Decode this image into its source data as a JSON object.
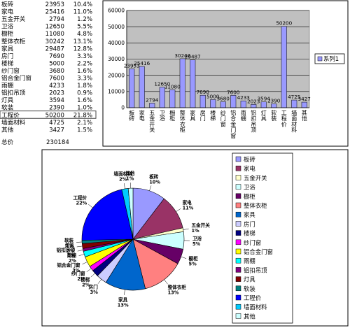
{
  "table": {
    "rows": [
      {
        "name": "板砖",
        "value": "23953",
        "pct": "10.4%"
      },
      {
        "name": "家电",
        "value": "25416",
        "pct": "11.0%"
      },
      {
        "name": "五金开关",
        "value": "2794",
        "pct": "1.2%"
      },
      {
        "name": "卫浴",
        "value": "12650",
        "pct": "5.5%"
      },
      {
        "name": "橱柜",
        "value": "11080",
        "pct": "4.8%"
      },
      {
        "name": "整体衣柜",
        "value": "30242",
        "pct": "13.1%"
      },
      {
        "name": "家具",
        "value": "29487",
        "pct": "12.8%"
      },
      {
        "name": "房门",
        "value": "7690",
        "pct": "3.3%"
      },
      {
        "name": "楼梯",
        "value": "5000",
        "pct": "2.2%"
      },
      {
        "name": "纱门窗",
        "value": "3680",
        "pct": "1.6%"
      },
      {
        "name": "铝合金门窗",
        "value": "7600",
        "pct": "3.3%"
      },
      {
        "name": "雨棚",
        "value": "4233",
        "pct": "1.8%"
      },
      {
        "name": "铝扣吊顶",
        "value": "2023",
        "pct": "0.9%"
      },
      {
        "name": "灯具",
        "value": "3594",
        "pct": "1.6%"
      },
      {
        "name": "软装",
        "value": "2390",
        "pct": "1.0%"
      },
      {
        "name": "工程价",
        "value": "50200",
        "pct": "21.8%"
      },
      {
        "name": "墙面材料",
        "value": "4725",
        "pct": "2.1%"
      },
      {
        "name": "其他",
        "value": "3427",
        "pct": "1.5%"
      }
    ],
    "total_label": "总价",
    "total_value": "230184",
    "highlight_index": 15
  },
  "chart_data": [
    {
      "type": "bar",
      "categories": [
        "板砖",
        "家电",
        "五金开关",
        "卫浴",
        "橱柜",
        "整体衣柜",
        "家具",
        "房门",
        "楼梯",
        "纱门窗",
        "铝合金门窗",
        "雨棚",
        "铝扣吊顶",
        "灯具",
        "软装",
        "工程价",
        "墙面材料",
        "其他"
      ],
      "series": [
        {
          "name": "系列1",
          "values": [
            23953,
            25416,
            2794,
            12650,
            11080,
            30242,
            29487,
            7690,
            5000,
            3680,
            7600,
            4233,
            2023,
            3594,
            2390,
            50200,
            4725,
            3427
          ]
        }
      ],
      "data_labels": [
        "23953",
        "25416",
        "2794",
        "12650",
        "11080",
        "30242",
        "29487",
        "7690",
        "5000",
        "3680",
        "7600",
        "4233",
        "2023",
        "3594",
        "2390",
        "50200",
        "4725",
        "3427"
      ],
      "ylim": [
        0,
        60000
      ],
      "yticks": [
        "0",
        "10000",
        "20000",
        "30000",
        "40000",
        "50000",
        "60000"
      ],
      "grid": true,
      "legend_placement": "right",
      "bar_color": "#9999ff",
      "plot_bg": "#c0c0c0"
    },
    {
      "type": "pie",
      "categories": [
        "板砖",
        "家电",
        "五金开关",
        "卫浴",
        "橱柜",
        "整体衣柜",
        "家具",
        "房门",
        "楼梯",
        "纱门窗",
        "铝合金门窗",
        "雨棚",
        "铝扣吊顶",
        "灯具",
        "软装",
        "工程价",
        "墙面材料",
        "其他"
      ],
      "values": [
        23953,
        25416,
        2794,
        12650,
        11080,
        30242,
        29487,
        7690,
        5000,
        3680,
        7600,
        4233,
        2023,
        3594,
        2390,
        50200,
        4725,
        3427
      ],
      "labels": [
        {
          "name": "板砖",
          "pct": "10%"
        },
        {
          "name": "家电",
          "pct": "11%"
        },
        {
          "name": "五金开关",
          "pct": "1%"
        },
        {
          "name": "卫浴",
          "pct": "5%"
        },
        {
          "name": "橱柜",
          "pct": "5%"
        },
        {
          "name": "整体衣柜",
          "pct": "13%"
        },
        {
          "name": "家具",
          "pct": "13%"
        },
        {
          "name": "房门",
          "pct": "3%"
        },
        {
          "name": "楼梯",
          "pct": "2%"
        },
        {
          "name": "纱门窗",
          "pct": "2%"
        },
        {
          "name": "铝合金门窗",
          "pct": "3%"
        },
        {
          "name": "雨棚",
          "pct": "2%"
        },
        {
          "name": "铝扣吊顶",
          "pct": "1%"
        },
        {
          "name": "灯具",
          "pct": "2%"
        },
        {
          "name": "软装",
          "pct": "1%"
        },
        {
          "name": "工程价",
          "pct": "22%"
        },
        {
          "name": "墙面材料",
          "pct": "2%"
        },
        {
          "name": "其他",
          "pct": "1%"
        }
      ],
      "colors": [
        "#9999ff",
        "#993366",
        "#ffffcc",
        "#ccffff",
        "#660066",
        "#ff8080",
        "#0066cc",
        "#ccccff",
        "#000080",
        "#ff00ff",
        "#ffff00",
        "#00ffff",
        "#800080",
        "#800000",
        "#008080",
        "#0000ff",
        "#00ccff",
        "#ccffff"
      ],
      "legend_placement": "right"
    }
  ]
}
